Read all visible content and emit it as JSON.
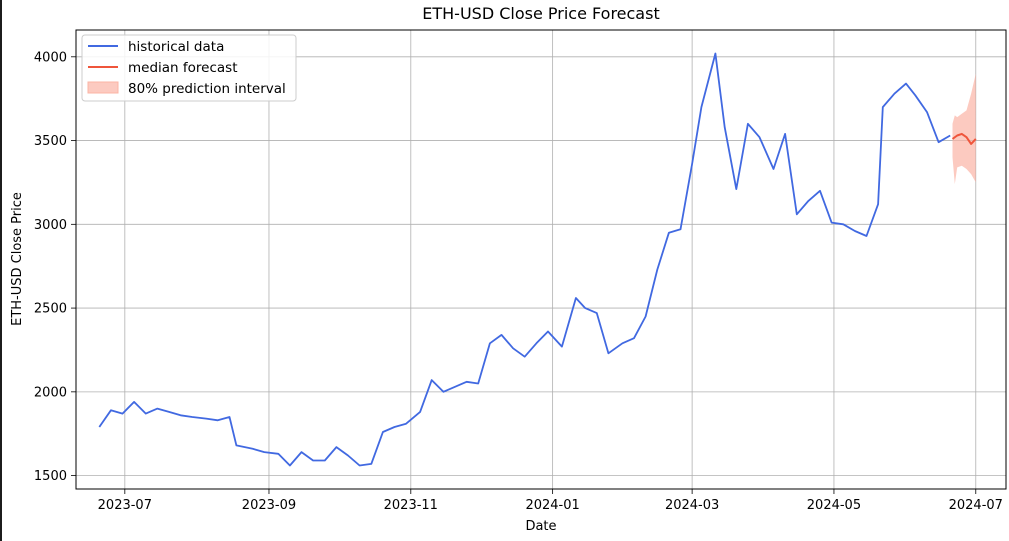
{
  "chart_data": {
    "type": "line",
    "title": "ETH-USD Close Price Forecast",
    "xlabel": "Date",
    "ylabel": "ETH-USD Close Price",
    "xlim": [
      "2023-06-10",
      "2024-07-14"
    ],
    "ylim": [
      1420,
      4160
    ],
    "x_ticks": [
      "2023-07-01",
      "2023-09-01",
      "2023-11-01",
      "2024-01-01",
      "2024-03-01",
      "2024-05-01",
      "2024-07-01"
    ],
    "x_tick_labels": [
      "2023-07",
      "2023-09",
      "2023-11",
      "2024-01",
      "2024-03",
      "2024-05",
      "2024-07"
    ],
    "y_ticks": [
      1500,
      2000,
      2500,
      3000,
      3500,
      4000
    ],
    "y_tick_labels": [
      "1500",
      "2000",
      "2500",
      "3000",
      "3500",
      "4000"
    ],
    "grid": true,
    "legend_position": "top-left",
    "legend": [
      "historical data",
      "median forecast",
      "80% prediction interval"
    ],
    "colors": {
      "historical": "#4169e1",
      "median": "#ef553b",
      "interval": "#fbb4a5"
    },
    "series": [
      {
        "name": "historical data",
        "x": [
          "2023-06-20",
          "2023-06-25",
          "2023-06-30",
          "2023-07-05",
          "2023-07-10",
          "2023-07-15",
          "2023-07-20",
          "2023-07-25",
          "2023-07-30",
          "2023-08-05",
          "2023-08-10",
          "2023-08-15",
          "2023-08-18",
          "2023-08-25",
          "2023-08-30",
          "2023-09-05",
          "2023-09-10",
          "2023-09-15",
          "2023-09-20",
          "2023-09-25",
          "2023-09-30",
          "2023-10-05",
          "2023-10-10",
          "2023-10-15",
          "2023-10-20",
          "2023-10-25",
          "2023-10-30",
          "2023-11-05",
          "2023-11-10",
          "2023-11-15",
          "2023-11-20",
          "2023-11-25",
          "2023-11-30",
          "2023-12-05",
          "2023-12-10",
          "2023-12-15",
          "2023-12-20",
          "2023-12-25",
          "2023-12-30",
          "2024-01-05",
          "2024-01-11",
          "2024-01-15",
          "2024-01-20",
          "2024-01-25",
          "2024-01-31",
          "2024-02-05",
          "2024-02-10",
          "2024-02-15",
          "2024-02-20",
          "2024-02-25",
          "2024-03-01",
          "2024-03-05",
          "2024-03-11",
          "2024-03-15",
          "2024-03-20",
          "2024-03-25",
          "2024-03-30",
          "2024-04-05",
          "2024-04-10",
          "2024-04-15",
          "2024-04-20",
          "2024-04-25",
          "2024-04-30",
          "2024-05-05",
          "2024-05-10",
          "2024-05-15",
          "2024-05-20",
          "2024-05-22",
          "2024-05-27",
          "2024-06-01",
          "2024-06-05",
          "2024-06-10",
          "2024-06-15",
          "2024-06-20"
        ],
        "values": [
          1790,
          1890,
          1870,
          1940,
          1870,
          1900,
          1880,
          1860,
          1850,
          1840,
          1830,
          1850,
          1680,
          1660,
          1640,
          1630,
          1560,
          1640,
          1590,
          1590,
          1670,
          1620,
          1560,
          1570,
          1760,
          1790,
          1810,
          1880,
          2070,
          2000,
          2030,
          2060,
          2050,
          2290,
          2340,
          2260,
          2210,
          2290,
          2360,
          2270,
          2560,
          2500,
          2470,
          2230,
          2290,
          2320,
          2450,
          2730,
          2950,
          2970,
          3360,
          3700,
          4020,
          3580,
          3210,
          3600,
          3520,
          3330,
          3540,
          3060,
          3140,
          3200,
          3010,
          3000,
          2960,
          2930,
          3120,
          3700,
          3780,
          3840,
          3770,
          3670,
          3490,
          3530
        ]
      },
      {
        "name": "median forecast",
        "x": [
          "2024-06-21",
          "2024-06-23",
          "2024-06-25",
          "2024-06-27",
          "2024-06-29",
          "2024-07-01"
        ],
        "values": [
          3510,
          3530,
          3540,
          3520,
          3480,
          3510
        ]
      },
      {
        "name": "80% prediction interval",
        "x": [
          "2024-06-21",
          "2024-06-22",
          "2024-06-23",
          "2024-06-25",
          "2024-06-27",
          "2024-06-29",
          "2024-07-01"
        ],
        "upper": [
          3600,
          3650,
          3640,
          3660,
          3680,
          3780,
          3900
        ],
        "lower": [
          3400,
          3240,
          3340,
          3350,
          3330,
          3300,
          3250
        ]
      }
    ]
  }
}
